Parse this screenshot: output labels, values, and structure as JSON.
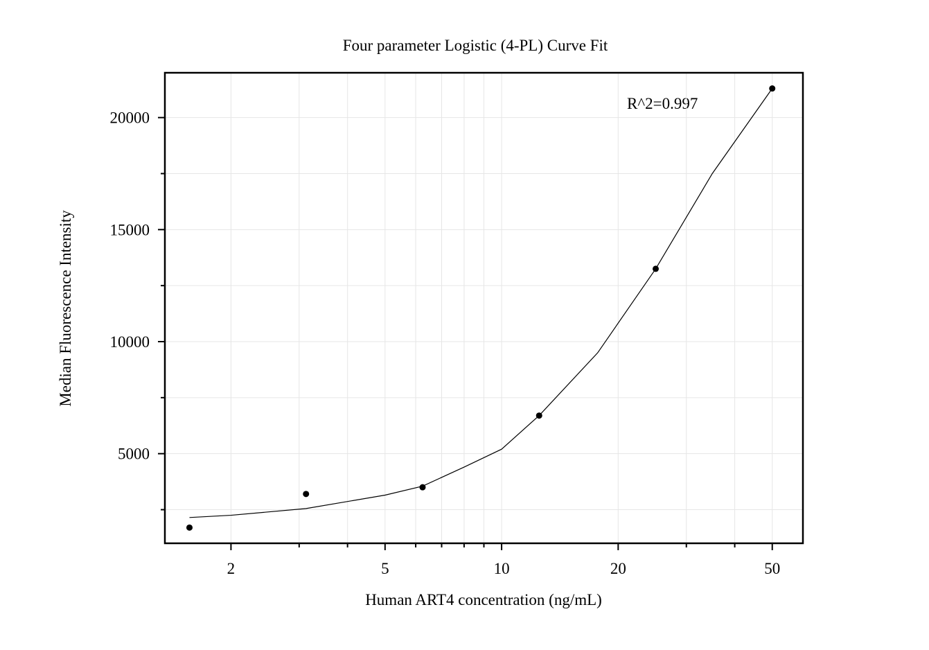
{
  "chart_data": {
    "type": "scatter",
    "title": "Four parameter Logistic (4-PL) Curve Fit",
    "x_label": "Human ART4 concentration (ng/mL)",
    "y_label": "Median Fluorescence Intensity",
    "annotation": "R^2=0.997",
    "x_scale": "log",
    "grid": true,
    "color": "#000000",
    "x": [
      1.5625,
      3.125,
      6.25,
      12.5,
      25,
      50
    ],
    "values": [
      1700,
      3200,
      3500,
      6700,
      13250,
      21300
    ],
    "curve": {
      "x": [
        1.5625,
        2,
        3.125,
        5,
        6.25,
        8,
        10,
        12.5,
        17.7,
        25,
        35,
        50
      ],
      "values": [
        2150,
        2250,
        2550,
        3150,
        3550,
        4400,
        5200,
        6700,
        9500,
        13250,
        17500,
        21300
      ]
    },
    "xlim": [
      1.35,
      60
    ],
    "xticks": [
      2,
      5,
      10,
      20,
      50
    ],
    "xminor_ticks": [
      3,
      4,
      6,
      7,
      8,
      9,
      30,
      40
    ],
    "ylim": [
      1000,
      22000
    ],
    "yticks": [
      5000,
      10000,
      15000,
      20000
    ],
    "yminor_ticks": [
      2500,
      7500,
      12500,
      17500
    ]
  }
}
